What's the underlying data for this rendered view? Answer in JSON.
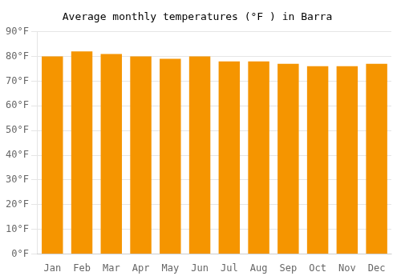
{
  "chart_data": {
    "type": "bar",
    "title": "Average monthly temperatures (°F ) in Barra",
    "categories": [
      "Jan",
      "Feb",
      "Mar",
      "Apr",
      "May",
      "Jun",
      "Jul",
      "Aug",
      "Sep",
      "Oct",
      "Nov",
      "Dec"
    ],
    "values": [
      80,
      82,
      81,
      80,
      79,
      80,
      78,
      78,
      77,
      76,
      76,
      77
    ],
    "color": "#F59500",
    "ylim": [
      0,
      90
    ],
    "yticks": [
      {
        "value": 0,
        "label": "0°F"
      },
      {
        "value": 10,
        "label": "10°F"
      },
      {
        "value": 20,
        "label": "20°F"
      },
      {
        "value": 30,
        "label": "30°F"
      },
      {
        "value": 40,
        "label": "40°F"
      },
      {
        "value": 50,
        "label": "50°F"
      },
      {
        "value": 60,
        "label": "60°F"
      },
      {
        "value": 70,
        "label": "70°F"
      },
      {
        "value": 80,
        "label": "80°F"
      },
      {
        "value": 90,
        "label": "90°F"
      }
    ],
    "grid": true
  }
}
